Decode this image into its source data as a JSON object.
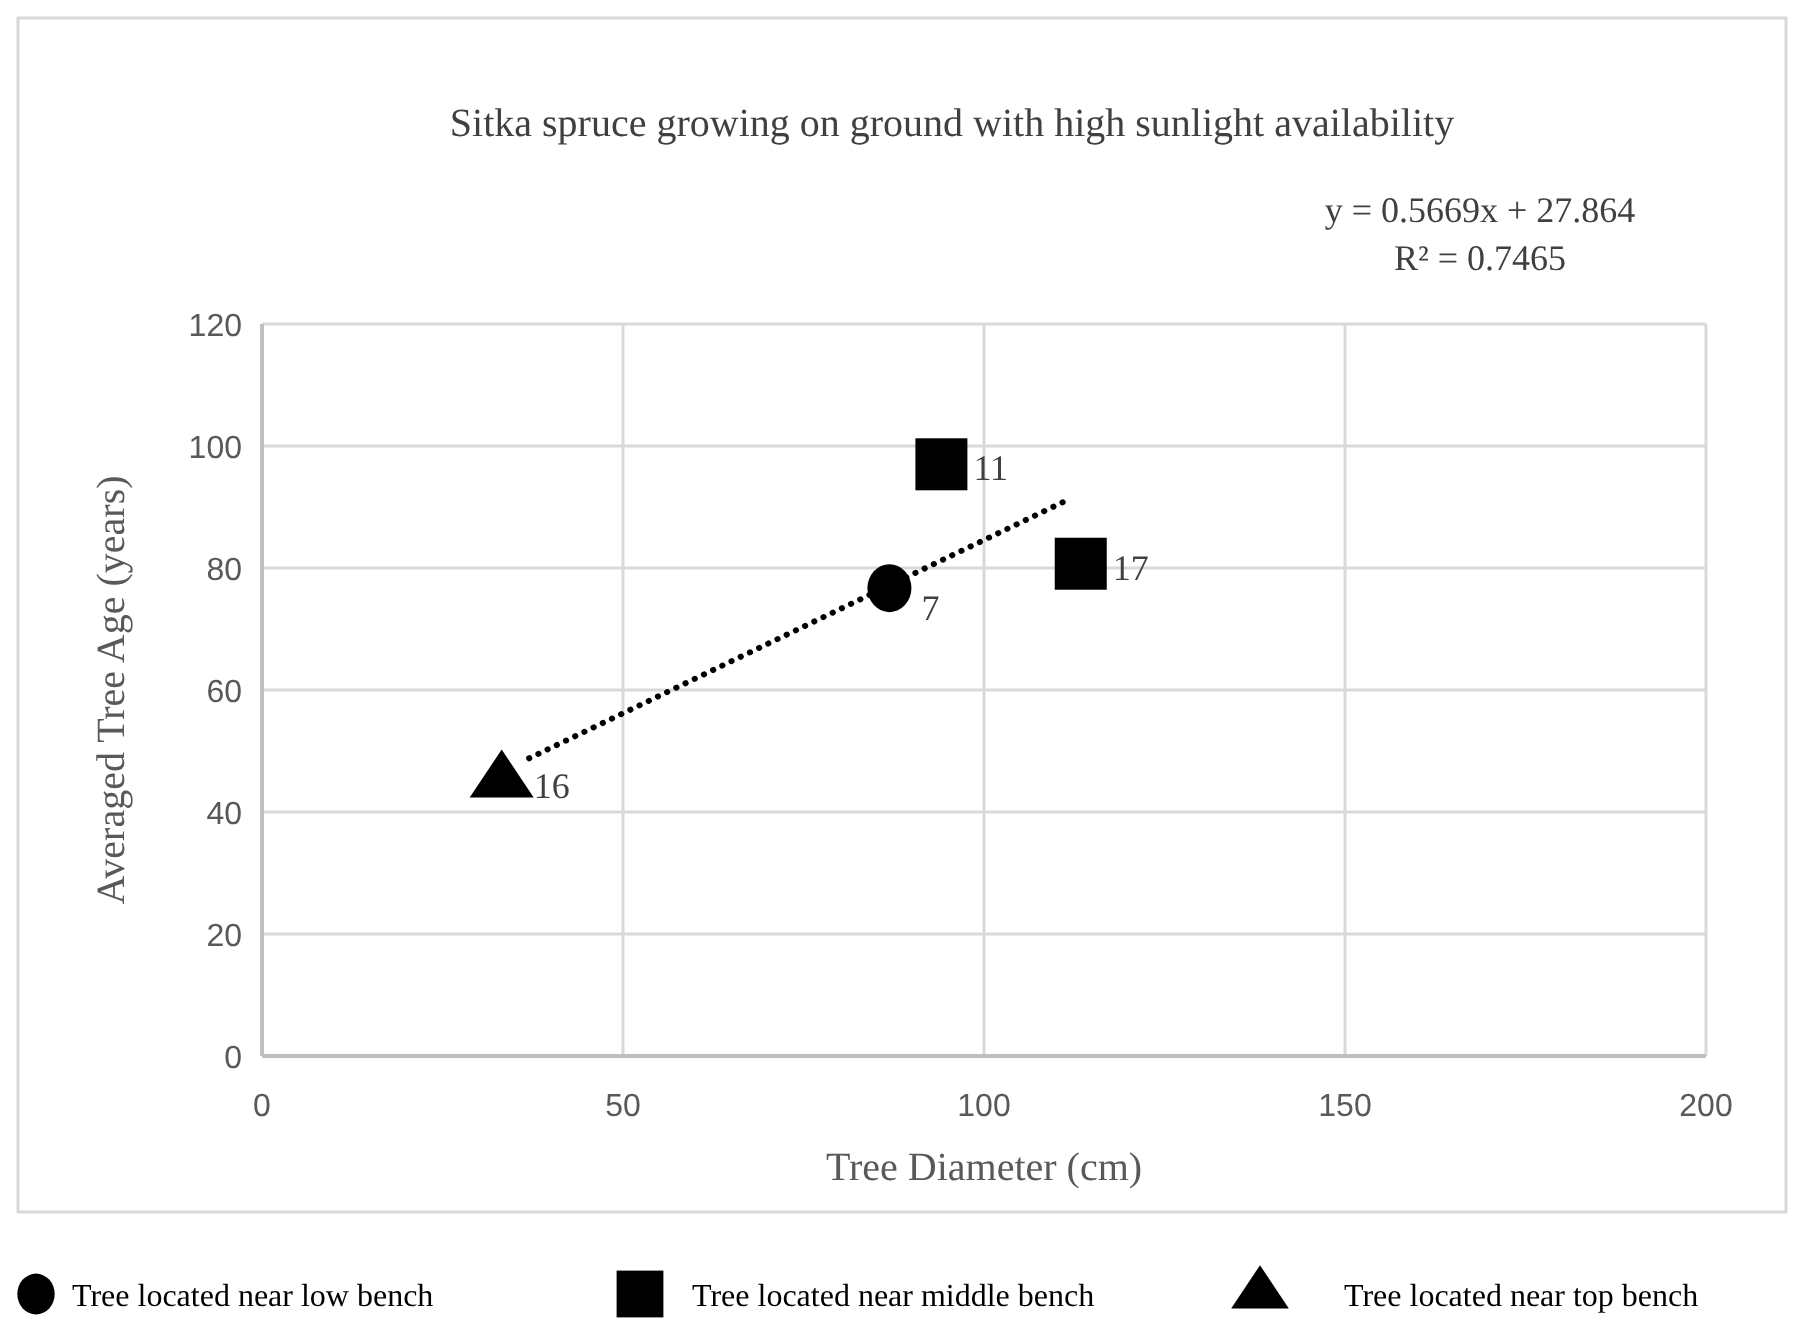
{
  "chart_data": {
    "type": "scatter",
    "title": "Sitka spruce growing on ground with high sunlight availability",
    "xlabel": "Tree Diameter (cm)",
    "ylabel": "Averaged Tree Age (years)",
    "xlim": [
      0,
      200
    ],
    "xticks": [
      0,
      50,
      100,
      150,
      200
    ],
    "ylim": [
      0,
      120
    ],
    "yticks": [
      0,
      20,
      40,
      60,
      80,
      100,
      120
    ],
    "grid": true,
    "legend": "bottom",
    "series": [
      {
        "name": "Tree located near low bench",
        "color": "#000000",
        "marker": "circle",
        "x": [
          86.9
        ],
        "values": [
          76.7
        ]
      },
      {
        "name": "Tree located near middle bench",
        "color": "#000000",
        "marker": "square",
        "x": [
          94.1,
          113.4
        ],
        "values": [
          97,
          80.7
        ]
      },
      {
        "name": "Tree located near top bench",
        "color": "#000000",
        "marker": "triangle",
        "x": [
          33.2
        ],
        "values": [
          45
        ]
      },
      {
        "type": "line",
        "color": "#000000",
        "line_style": "dotted",
        "marker": "none",
        "x": [
          37,
          112
        ],
        "values": [
          48.8,
          91.4
        ]
      }
    ],
    "annotations": [
      "y = 0.5669x + 27.864",
      "R² = 0.7465",
      {
        "text": "7",
        "x": 86.9,
        "y": 76.7
      },
      {
        "text": "11",
        "x": 94.1,
        "y": 97
      },
      {
        "text": "17",
        "x": 113.4,
        "y": 80.7
      },
      {
        "text": "16",
        "x": 33.2,
        "y": 45
      }
    ]
  }
}
